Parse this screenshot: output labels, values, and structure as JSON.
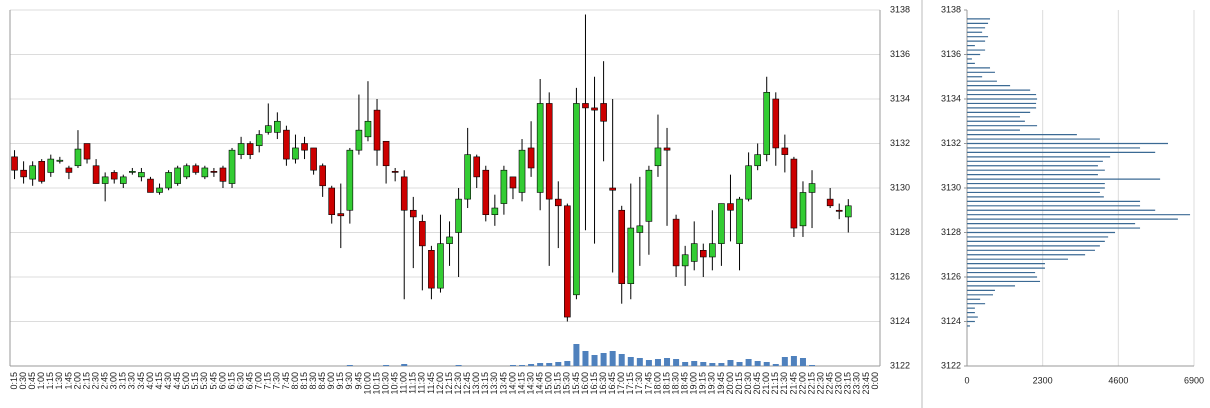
{
  "chart_data": [
    {
      "type": "candlestick",
      "categories": [
        "0:15",
        "0:30",
        "0:45",
        "1:00",
        "1:15",
        "1:30",
        "1:45",
        "2:00",
        "2:15",
        "2:30",
        "2:45",
        "3:00",
        "3:15",
        "3:30",
        "3:45",
        "4:00",
        "4:15",
        "4:30",
        "4:45",
        "5:00",
        "5:15",
        "5:30",
        "5:45",
        "6:00",
        "6:15",
        "6:30",
        "6:45",
        "7:00",
        "7:15",
        "7:30",
        "7:45",
        "8:00",
        "8:15",
        "8:30",
        "8:45",
        "9:00",
        "9:15",
        "9:30",
        "9:45",
        "10:00",
        "10:15",
        "10:30",
        "10:45",
        "11:00",
        "11:15",
        "11:30",
        "11:45",
        "12:00",
        "12:15",
        "12:30",
        "12:45",
        "13:00",
        "13:15",
        "13:30",
        "13:45",
        "14:00",
        "14:15",
        "14:30",
        "14:45",
        "15:00",
        "15:15",
        "15:30",
        "15:45",
        "16:00",
        "16:15",
        "16:30",
        "16:45",
        "17:00",
        "17:15",
        "17:30",
        "17:45",
        "18:00",
        "18:15",
        "18:30",
        "18:45",
        "19:00",
        "19:15",
        "19:30",
        "19:45",
        "20:00",
        "20:15",
        "20:30",
        "20:45",
        "21:00",
        "21:15",
        "21:30",
        "21:45",
        "22:00",
        "22:15",
        "22:30",
        "22:45",
        "23:00",
        "23:15",
        "23:30",
        "23:45",
        "0:00"
      ],
      "open": [
        3131.4,
        3130.8,
        3130.4,
        3131.2,
        3130.7,
        3131.2,
        3130.9,
        3131.0,
        3132.0,
        3131.0,
        3130.2,
        3130.7,
        3130.2,
        3130.7,
        3130.5,
        3130.4,
        3129.8,
        3130.0,
        3130.2,
        3130.5,
        3131.0,
        3130.5,
        3130.75,
        3130.9,
        3130.2,
        3131.5,
        3132.0,
        3131.9,
        3132.5,
        3132.5,
        3132.6,
        3131.3,
        3132.0,
        3131.8,
        3131.0,
        3130.0,
        3128.85,
        3129.0,
        3131.7,
        3132.3,
        3133.5,
        3132.1,
        3130.75,
        3130.5,
        3129.0,
        3128.5,
        3127.2,
        3125.5,
        3127.5,
        3128.0,
        3129.5,
        3131.4,
        3130.8,
        3128.8,
        3129.3,
        3130.5,
        3129.8,
        3131.8,
        3129.8,
        3133.8,
        3129.5,
        3129.2,
        3125.2,
        3133.8,
        3133.6,
        3133.8,
        3130.0,
        3129.0,
        3125.7,
        3128.0,
        3128.5,
        3131.0,
        3131.8,
        3128.6,
        3126.5,
        3126.7,
        3127.2,
        3126.9,
        3127.5,
        3129.3,
        3127.5,
        3129.5,
        3131.0,
        3131.5,
        3134.0,
        3131.8,
        3131.3,
        3128.3,
        3129.8,
        null,
        3129.5,
        3129.0,
        3128.7,
        null,
        null,
        null
      ],
      "high": [
        3131.7,
        3131.2,
        3131.2,
        3131.3,
        3131.5,
        3131.4,
        3131.0,
        3132.6,
        3132.0,
        3131.3,
        3130.7,
        3130.8,
        3130.6,
        3130.9,
        3130.9,
        3130.5,
        3130.2,
        3130.8,
        3131.0,
        3131.1,
        3131.1,
        3131.0,
        3130.9,
        3131.0,
        3131.8,
        3132.3,
        3132.1,
        3132.6,
        3133.8,
        3133.4,
        3132.8,
        3132.4,
        3132.3,
        3131.8,
        3131.1,
        3130.1,
        3130.2,
        3131.8,
        3134.2,
        3134.8,
        3134.0,
        3132.1,
        3130.9,
        3130.8,
        3129.6,
        3128.8,
        3127.4,
        3128.8,
        3128.5,
        3130.0,
        3132.7,
        3131.5,
        3131.0,
        3129.7,
        3131.0,
        3130.5,
        3132.2,
        3133.0,
        3134.9,
        3134.3,
        3130.3,
        3129.3,
        3134.5,
        3137.8,
        3135.0,
        3135.7,
        3134.0,
        3129.2,
        3130.2,
        3130.5,
        3131.0,
        3133.3,
        3132.7,
        3128.8,
        3127.4,
        3128.5,
        3127.5,
        3129.0,
        3129.3,
        3130.6,
        3129.6,
        3131.6,
        3132.0,
        3135.0,
        3134.3,
        3132.4,
        3131.4,
        3130.3,
        3130.8,
        null,
        3130.0,
        3129.3,
        3129.5,
        null,
        null,
        null
      ],
      "low": [
        3130.4,
        3130.2,
        3130.1,
        3130.2,
        3130.5,
        3131.1,
        3130.4,
        3130.9,
        3131.1,
        3130.2,
        3129.4,
        3130.2,
        3130.0,
        3130.6,
        3130.3,
        3129.8,
        3129.7,
        3129.9,
        3130.1,
        3130.4,
        3130.6,
        3130.4,
        3130.5,
        3130.0,
        3130.0,
        3131.3,
        3131.3,
        3131.6,
        3132.4,
        3132.2,
        3131.0,
        3131.1,
        3131.3,
        3130.6,
        3129.6,
        3128.4,
        3127.3,
        3128.4,
        3131.5,
        3132.1,
        3131.0,
        3130.2,
        3130.3,
        3125.0,
        3126.4,
        3125.4,
        3125.0,
        3125.3,
        3126.5,
        3126.0,
        3129.1,
        3130.0,
        3128.5,
        3128.3,
        3128.8,
        3129.5,
        3129.4,
        3130.5,
        3129.0,
        3126.5,
        3127.3,
        3124.0,
        3125.0,
        3128.1,
        3127.5,
        3131.2,
        3126.2,
        3124.8,
        3125.0,
        3126.5,
        3127.0,
        3130.5,
        3128.3,
        3126.0,
        3125.6,
        3126.3,
        3126.0,
        3126.3,
        3126.5,
        3127.6,
        3126.3,
        3129.4,
        3130.8,
        3131.2,
        3131.0,
        3130.7,
        3127.8,
        3127.8,
        3128.2,
        null,
        3129.1,
        3128.6,
        3128.0,
        null,
        null,
        null
      ],
      "close": [
        3130.8,
        3130.5,
        3131.0,
        3130.3,
        3131.3,
        3131.25,
        3130.7,
        3131.75,
        3131.3,
        3130.2,
        3130.5,
        3130.4,
        3130.5,
        3130.75,
        3130.7,
        3129.8,
        3130.0,
        3130.7,
        3130.9,
        3131.0,
        3130.7,
        3130.9,
        3130.7,
        3130.3,
        3131.7,
        3132.0,
        3131.5,
        3132.4,
        3132.8,
        3133.0,
        3131.3,
        3131.8,
        3131.7,
        3130.8,
        3130.1,
        3128.8,
        3128.75,
        3131.7,
        3132.6,
        3133.0,
        3131.7,
        3131.0,
        3130.7,
        3129.0,
        3128.7,
        3127.4,
        3125.5,
        3127.5,
        3127.8,
        3129.5,
        3131.5,
        3130.5,
        3128.8,
        3129.1,
        3130.8,
        3130.0,
        3131.7,
        3130.9,
        3133.8,
        3129.5,
        3129.2,
        3124.2,
        3133.8,
        3133.6,
        3133.5,
        3133.0,
        3129.9,
        3125.7,
        3128.2,
        3128.3,
        3130.8,
        3131.8,
        3131.7,
        3126.5,
        3127.0,
        3127.5,
        3126.9,
        3127.5,
        3129.3,
        3129.0,
        3129.5,
        3131.0,
        3131.5,
        3134.3,
        3131.8,
        3131.5,
        3128.2,
        3129.8,
        3130.2,
        null,
        3129.2,
        3128.95,
        3129.2,
        null,
        null,
        null
      ],
      "volume": [
        0,
        0,
        0,
        0,
        0,
        0,
        0,
        0,
        0,
        0,
        0,
        0,
        0,
        0,
        0,
        0,
        0,
        0,
        0,
        0,
        0,
        0,
        0,
        0,
        0,
        0,
        0,
        0,
        0,
        0,
        0,
        0,
        0,
        0,
        0,
        0,
        0,
        1,
        0,
        0,
        0,
        1,
        0,
        2,
        0,
        0,
        0,
        0,
        0,
        1,
        0,
        0,
        0,
        0,
        0,
        1,
        1,
        2,
        3,
        3,
        4,
        5,
        22,
        15,
        11,
        13,
        15,
        12,
        9,
        8,
        6,
        7,
        8,
        7,
        4,
        5,
        4,
        3,
        3,
        6,
        4,
        7,
        5,
        4,
        2,
        9,
        10,
        8,
        1,
        null,
        0,
        0,
        0,
        null,
        null,
        null
      ],
      "up_color": "#33cc33",
      "down_color": "#cc0000",
      "volume_color": "#4f81bd",
      "ylim": [
        3122,
        3138
      ],
      "yticks": [
        3122,
        3124,
        3126,
        3128,
        3130,
        3132,
        3134,
        3136,
        3138
      ],
      "grid": true
    },
    {
      "type": "hbar",
      "y": [
        3137.6,
        3137.4,
        3137.2,
        3137.0,
        3136.8,
        3136.6,
        3136.4,
        3136.2,
        3136.0,
        3135.8,
        3135.6,
        3135.4,
        3135.2,
        3135.0,
        3134.8,
        3134.6,
        3134.4,
        3134.2,
        3134.0,
        3133.8,
        3133.6,
        3133.4,
        3133.2,
        3133.0,
        3132.8,
        3132.6,
        3132.4,
        3132.2,
        3132.0,
        3131.8,
        3131.6,
        3131.4,
        3131.2,
        3131.0,
        3130.8,
        3130.6,
        3130.4,
        3130.2,
        3130.0,
        3129.8,
        3129.6,
        3129.4,
        3129.2,
        3129.0,
        3128.8,
        3128.6,
        3128.4,
        3128.2,
        3128.0,
        3127.8,
        3127.6,
        3127.4,
        3127.2,
        3127.0,
        3126.8,
        3126.6,
        3126.4,
        3126.2,
        3126.0,
        3125.8,
        3125.6,
        3125.4,
        3125.2,
        3125.0,
        3124.8,
        3124.6,
        3124.4,
        3124.2,
        3124.0,
        3123.8
      ],
      "values": [
        700,
        640,
        550,
        460,
        640,
        550,
        240,
        550,
        400,
        150,
        240,
        700,
        850,
        460,
        910,
        1310,
        1920,
        2100,
        2130,
        2100,
        2100,
        1920,
        1610,
        1760,
        2130,
        1610,
        3340,
        4040,
        6110,
        5260,
        5720,
        4350,
        4130,
        3980,
        4190,
        3980,
        5870,
        4190,
        4190,
        4040,
        4160,
        5260,
        5260,
        5720,
        6780,
        6410,
        5110,
        5260,
        4500,
        4290,
        4190,
        4040,
        3890,
        3590,
        3070,
        2370,
        2370,
        2070,
        2130,
        2220,
        1460,
        850,
        790,
        400,
        550,
        240,
        240,
        330,
        240,
        90
      ],
      "color": "#3b6a94",
      "xlim": [
        0,
        6900
      ],
      "xticks": [
        0,
        2300,
        4600,
        6900
      ],
      "ylim": [
        3122,
        3138
      ],
      "yticks": [
        3122,
        3124,
        3126,
        3128,
        3130,
        3132,
        3134,
        3136,
        3138
      ],
      "grid": true
    }
  ]
}
